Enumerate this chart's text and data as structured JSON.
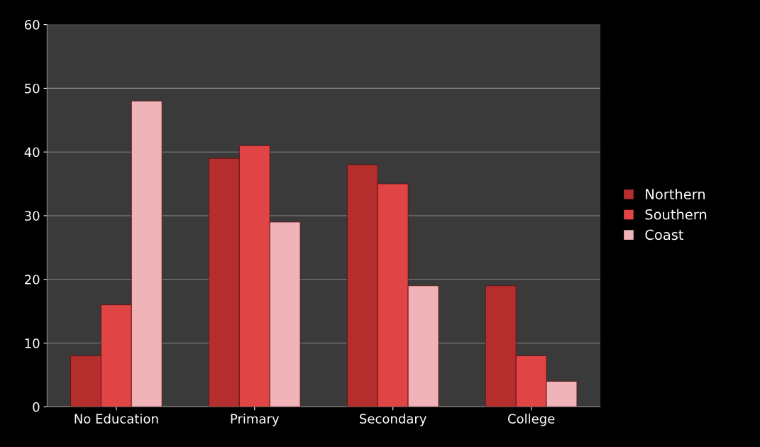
{
  "chart_data": {
    "type": "bar",
    "categories": [
      "No Education",
      "Primary",
      "Secondary",
      "College"
    ],
    "series": [
      {
        "name": "Northern",
        "color": "#b52e2e",
        "values": [
          8,
          39,
          38,
          19
        ]
      },
      {
        "name": "Southern",
        "color": "#e04444",
        "values": [
          16,
          41,
          35,
          8
        ]
      },
      {
        "name": "Coast",
        "color": "#f0b4b8",
        "values": [
          48,
          29,
          19,
          4
        ]
      }
    ],
    "ylim": [
      0,
      60
    ],
    "yticks": [
      0,
      10,
      20,
      30,
      40,
      50,
      60
    ],
    "grid": "y",
    "legend": "right"
  }
}
